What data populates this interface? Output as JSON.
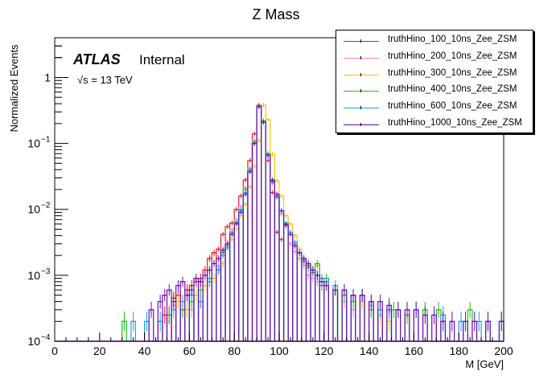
{
  "chart_data": {
    "type": "line",
    "subtype": "step-histogram",
    "title": "Z Mass",
    "xlabel": "M [GeV]",
    "ylabel": "Normalized Events",
    "xlim": [
      0,
      200
    ],
    "ylim": [
      0.0001,
      4
    ],
    "yscale": "log",
    "grid": false,
    "legend_position": "top-right",
    "x_ticks": [
      "0",
      "20",
      "40",
      "60",
      "80",
      "100",
      "120",
      "140",
      "160",
      "180",
      "200"
    ],
    "y_ticks": [
      {
        "value": 1,
        "base": "1",
        "exp": ""
      },
      {
        "value": 0.1,
        "base": "10",
        "exp": "−1"
      },
      {
        "value": 0.01,
        "base": "10",
        "exp": "−2"
      },
      {
        "value": 0.001,
        "base": "10",
        "exp": "−3"
      },
      {
        "value": 0.0001,
        "base": "10",
        "exp": "−4"
      }
    ],
    "annotations": {
      "experiment": "ATLAS",
      "status": "Internal",
      "energy": "√s = 13 TeV"
    },
    "bin_width": 2,
    "series": [
      {
        "name": "truthHino_100_10ns_Zee_ZSM",
        "color": "#e31a1c",
        "x": [
          48,
          50,
          52,
          54,
          56,
          58,
          60,
          62,
          64,
          66,
          68,
          70,
          72,
          74,
          76,
          78,
          80,
          82,
          84,
          86,
          88,
          90,
          92,
          94,
          96,
          98,
          100
        ],
        "values": [
          0.00025,
          0.00025,
          0.00045,
          0.0005,
          0.0003,
          0.0006,
          0.0007,
          0.0008,
          0.0009,
          0.0012,
          0.0018,
          0.0022,
          0.0025,
          0.0042,
          0.0055,
          0.0062,
          0.01,
          0.016,
          0.028,
          0.055,
          0.14,
          0.38,
          0.21,
          0.055,
          0.018,
          0.0045,
          0.0035
        ]
      },
      {
        "name": "truthHino_200_10ns_Zee_ZSM",
        "color": "#ee82ee",
        "x": [
          52,
          56,
          60,
          64,
          68,
          72,
          74,
          76,
          78,
          80,
          82,
          84,
          86,
          88,
          90,
          92,
          94,
          96,
          98,
          100,
          102,
          104,
          106,
          108,
          110,
          112,
          114,
          116,
          120,
          124,
          128,
          132,
          140,
          148
        ],
        "values": [
          0.00035,
          0.0004,
          0.0003,
          0.0004,
          0.0009,
          0.0014,
          0.0025,
          0.0032,
          0.005,
          0.007,
          0.011,
          0.021,
          0.042,
          0.11,
          0.37,
          0.22,
          0.065,
          0.025,
          0.015,
          0.0085,
          0.0055,
          0.003,
          0.0023,
          0.0018,
          0.0014,
          0.001,
          0.0009,
          0.0008,
          0.0007,
          0.0006,
          0.0004,
          0.0003,
          0.00035,
          0.0003
        ]
      },
      {
        "name": "truthHino_300_10ns_Zee_ZSM",
        "color": "#f5c400",
        "x": [
          54,
          58,
          62,
          66,
          70,
          74,
          76,
          78,
          80,
          82,
          84,
          86,
          88,
          90,
          92,
          94,
          96,
          98,
          100,
          102,
          104,
          106,
          108,
          110,
          112,
          114,
          116,
          118,
          120,
          124,
          128,
          132,
          136,
          140,
          144,
          148
        ],
        "values": [
          0.0004,
          0.0003,
          0.0005,
          0.0007,
          0.0009,
          0.0015,
          0.0028,
          0.0035,
          0.005,
          0.008,
          0.012,
          0.022,
          0.045,
          0.11,
          0.38,
          0.23,
          0.068,
          0.027,
          0.016,
          0.008,
          0.006,
          0.004,
          0.0025,
          0.0018,
          0.0014,
          0.0011,
          0.0014,
          0.0008,
          0.0007,
          0.0006,
          0.0005,
          0.0004,
          0.0004,
          0.0003,
          0.00025,
          0.0002
        ]
      },
      {
        "name": "truthHino_400_10ns_Zee_ZSM",
        "color": "#1fbf1f",
        "x": [
          30,
          50,
          56,
          60,
          64,
          68,
          72,
          74,
          76,
          78,
          80,
          82,
          84,
          86,
          88,
          90,
          92,
          94,
          96,
          98,
          100,
          102,
          104,
          106,
          108,
          110,
          112,
          114,
          116,
          118,
          120,
          124,
          128,
          132,
          136,
          140,
          144,
          150,
          156,
          164,
          170,
          184
        ],
        "values": [
          0.0002,
          0.00025,
          0.0003,
          0.0004,
          0.0006,
          0.0008,
          0.0012,
          0.0022,
          0.0028,
          0.0045,
          0.0065,
          0.01,
          0.02,
          0.04,
          0.105,
          0.37,
          0.22,
          0.07,
          0.027,
          0.016,
          0.0095,
          0.006,
          0.0042,
          0.003,
          0.0022,
          0.0016,
          0.0013,
          0.0011,
          0.0015,
          0.0007,
          0.0009,
          0.0006,
          0.0005,
          0.0004,
          0.0005,
          0.0003,
          0.0003,
          0.0003,
          0.00025,
          0.0003,
          0.0003,
          0.0003
        ]
      },
      {
        "name": "truthHino_600_10ns_Zee_ZSM",
        "color": "#1f9ee8",
        "x": [
          34,
          40,
          46,
          52,
          56,
          60,
          64,
          68,
          72,
          74,
          76,
          78,
          80,
          82,
          84,
          86,
          88,
          90,
          92,
          94,
          96,
          98,
          100,
          102,
          104,
          106,
          108,
          110,
          112,
          114,
          116,
          118,
          120,
          124,
          128,
          132,
          136,
          140,
          144,
          148,
          152,
          160,
          172,
          180,
          188,
          192,
          198
        ],
        "values": [
          0.0002,
          0.0002,
          0.0002,
          0.0003,
          0.0004,
          0.0005,
          0.0004,
          0.0009,
          0.0012,
          0.002,
          0.0026,
          0.0042,
          0.0062,
          0.0095,
          0.018,
          0.038,
          0.1,
          0.36,
          0.21,
          0.068,
          0.026,
          0.0155,
          0.0095,
          0.0062,
          0.0045,
          0.0032,
          0.0022,
          0.0017,
          0.0014,
          0.0012,
          0.001,
          0.0009,
          0.0008,
          0.0007,
          0.0006,
          0.0005,
          0.0005,
          0.0004,
          0.0003,
          0.0003,
          0.0003,
          0.0003,
          0.00025,
          0.0002,
          0.0002,
          0.0002,
          0.0002
        ]
      },
      {
        "name": "truthHino_1000_10ns_Zee_ZSM",
        "color": "#6a0dad",
        "x": [
          42,
          46,
          48,
          50,
          52,
          54,
          56,
          58,
          60,
          62,
          64,
          66,
          68,
          70,
          72,
          74,
          76,
          78,
          80,
          82,
          84,
          86,
          88,
          90,
          92,
          94,
          96,
          98,
          100,
          102,
          104,
          106,
          108,
          110,
          112,
          114,
          116,
          118,
          120,
          124,
          128,
          132,
          136,
          140,
          144,
          148,
          152,
          156,
          160,
          164,
          168,
          172,
          176,
          182,
          186,
          192,
          198
        ],
        "values": [
          0.0003,
          0.0004,
          0.0005,
          0.0006,
          0.0004,
          0.0007,
          0.0008,
          0.0005,
          0.0006,
          0.0009,
          0.0008,
          0.001,
          0.0012,
          0.0015,
          0.0018,
          0.0024,
          0.003,
          0.0042,
          0.006,
          0.009,
          0.017,
          0.037,
          0.1,
          0.36,
          0.21,
          0.065,
          0.028,
          0.017,
          0.0095,
          0.0058,
          0.0042,
          0.0028,
          0.0022,
          0.0018,
          0.0015,
          0.0012,
          0.001,
          0.0008,
          0.0007,
          0.0006,
          0.0006,
          0.0005,
          0.0005,
          0.0004,
          0.0004,
          0.00035,
          0.0003,
          0.0003,
          0.0003,
          0.00025,
          0.00025,
          0.0002,
          0.0002,
          0.0002,
          0.0002,
          0.0002,
          0.0002
        ]
      }
    ]
  }
}
